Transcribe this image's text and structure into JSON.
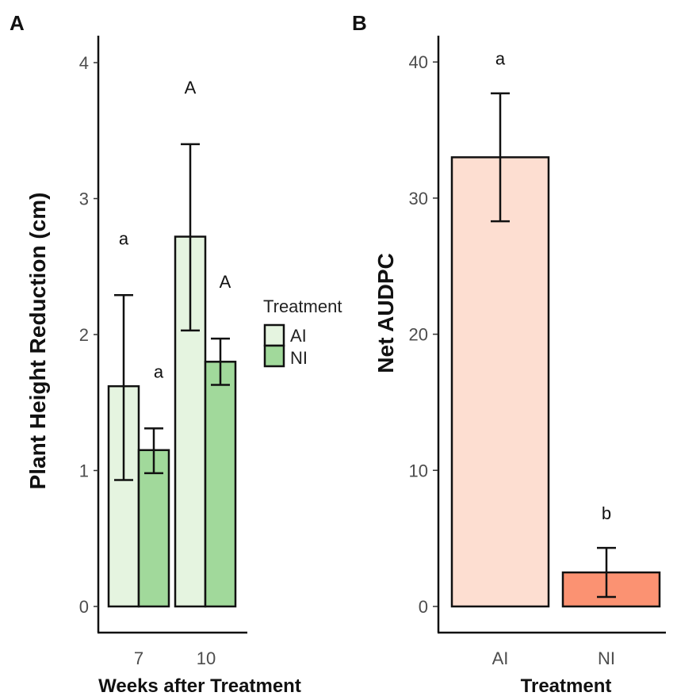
{
  "chart_data": [
    {
      "panel": "A",
      "type": "bar",
      "xlabel": "Weeks after Treatment",
      "ylabel": "Plant Height Reduction (cm)",
      "ylim": [
        0,
        4
      ],
      "yticks": [
        "0",
        "1",
        "2",
        "3",
        "4"
      ],
      "categories": [
        "7",
        "10"
      ],
      "legend": {
        "title": "Treatment",
        "entries": [
          {
            "label": "AI",
            "color": "#e5f4e0"
          },
          {
            "label": "NI",
            "color": "#a1d99b"
          }
        ]
      },
      "series": [
        {
          "name": "AI",
          "color": "#e5f4e0",
          "values": [
            1.62,
            2.72
          ],
          "err_low": [
            0.93,
            2.03
          ],
          "err_high": [
            2.29,
            3.4
          ],
          "labels": [
            "a",
            "A"
          ]
        },
        {
          "name": "NI",
          "color": "#a1d99b",
          "values": [
            1.15,
            1.8
          ],
          "err_low": [
            0.98,
            1.63
          ],
          "err_high": [
            1.31,
            1.97
          ],
          "labels": [
            "a",
            "A"
          ]
        }
      ]
    },
    {
      "panel": "B",
      "type": "bar",
      "xlabel": "Treatment",
      "ylabel": "Net AUDPC",
      "ylim": [
        0,
        42
      ],
      "yticks": [
        "0",
        "10",
        "20",
        "30",
        "40"
      ],
      "categories": [
        "AI",
        "NI"
      ],
      "colors": [
        "#fdded1",
        "#fb9272"
      ],
      "values": [
        33.0,
        2.5
      ],
      "err_low": [
        28.3,
        0.7
      ],
      "err_high": [
        37.7,
        4.3
      ],
      "labels": [
        "a",
        "b"
      ]
    }
  ]
}
